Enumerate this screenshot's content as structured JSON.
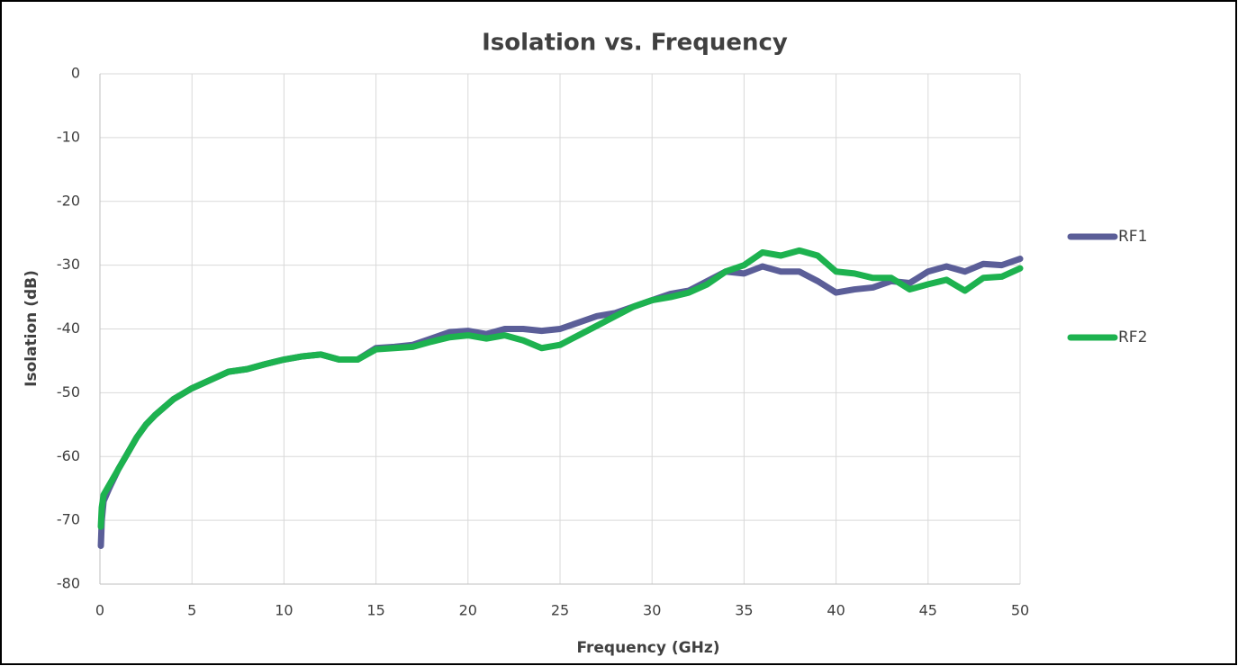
{
  "chart_data": {
    "type": "line",
    "title": "Isolation vs. Frequency",
    "x_label": "Frequency (GHz)",
    "y_label": "Isolation (dB)",
    "x": [
      0.05,
      0.1,
      0.2,
      0.5,
      1,
      1.5,
      2,
      2.5,
      3,
      4,
      5,
      6,
      7,
      8,
      9,
      10,
      11,
      12,
      13,
      14,
      15,
      16,
      17,
      18,
      19,
      20,
      21,
      22,
      23,
      24,
      25,
      26,
      27,
      28,
      29,
      30,
      31,
      32,
      33,
      34,
      35,
      36,
      37,
      38,
      39,
      40,
      41,
      42,
      43,
      44,
      45,
      46,
      47,
      48,
      49,
      50
    ],
    "series": [
      {
        "name": "RF1",
        "color": "#5b5e98",
        "values": [
          -74,
          -70,
          -67,
          -65,
          -62,
          -59.5,
          -57,
          -55,
          -53.5,
          -51,
          -49.3,
          -48,
          -46.7,
          -46.3,
          -45.5,
          -44.8,
          -44.3,
          -44,
          -44.8,
          -44.8,
          -43,
          -42.8,
          -42.5,
          -41.5,
          -40.5,
          -40.3,
          -40.8,
          -40,
          -40,
          -40.3,
          -40,
          -39,
          -38,
          -37.5,
          -36.5,
          -35.5,
          -34.5,
          -34,
          -32.5,
          -31,
          -31.3,
          -30.2,
          -31,
          -31,
          -32.5,
          -34.3,
          -33.8,
          -33.5,
          -32.5,
          -32.8,
          -31,
          -30.2,
          -31,
          -29.8,
          -30,
          -29
        ]
      },
      {
        "name": "RF2",
        "color": "#1db24f",
        "values": [
          -71,
          -68,
          -66,
          -64.5,
          -62,
          -59.5,
          -57,
          -55,
          -53.5,
          -51,
          -49.3,
          -48,
          -46.7,
          -46.3,
          -45.5,
          -44.8,
          -44.3,
          -44,
          -44.8,
          -44.8,
          -43.2,
          -43,
          -42.8,
          -42,
          -41.3,
          -41,
          -41.5,
          -41,
          -41.8,
          -43,
          -42.5,
          -41,
          -39.5,
          -38,
          -36.5,
          -35.5,
          -35,
          -34.3,
          -33,
          -31,
          -30,
          -28,
          -28.5,
          -27.7,
          -28.5,
          -31,
          -31.3,
          -32,
          -32,
          -33.8,
          -33,
          -32.3,
          -34,
          -32,
          -31.8,
          -30.5
        ]
      }
    ],
    "xlim": [
      0,
      50
    ],
    "xticks": [
      0,
      5,
      10,
      15,
      20,
      25,
      30,
      35,
      40,
      45,
      50
    ],
    "ylim": [
      -80,
      0
    ],
    "yticks": [
      -80,
      -70,
      -60,
      -50,
      -40,
      -30,
      -20,
      -10,
      0
    ],
    "grid": true,
    "legend": "right"
  }
}
